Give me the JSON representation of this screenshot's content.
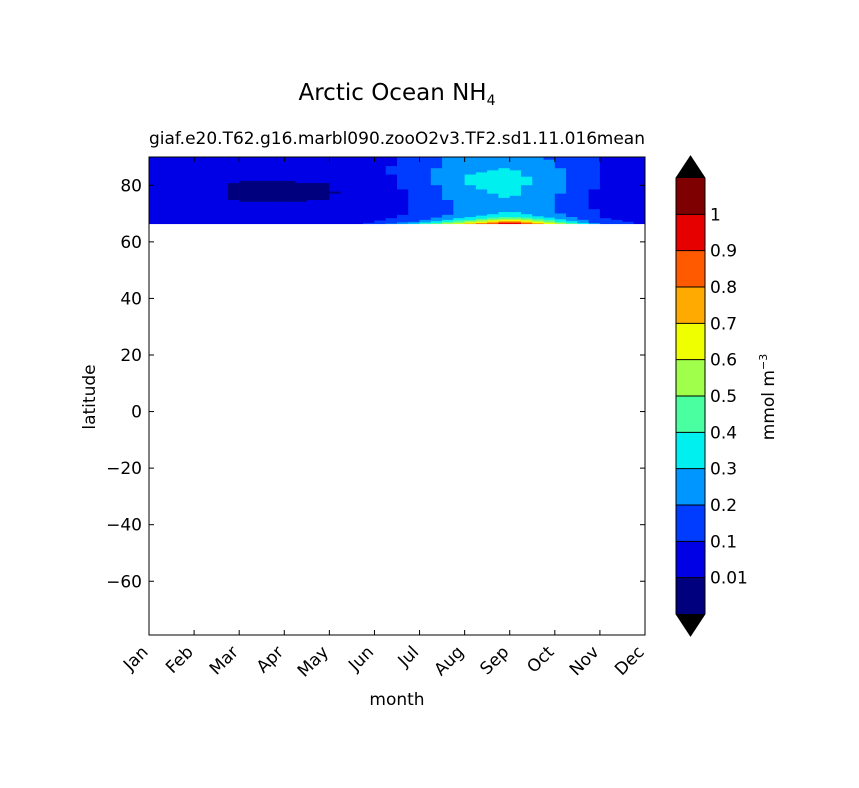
{
  "chart_data": {
    "type": "heatmap",
    "title": "Arctic Ocean NH",
    "title_subscript": "4",
    "subtitle_left": "giaf.e20.T62.g16.marbl090.zooO2v3.TF2.sd1.11.016",
    "subtitle_right": "mean",
    "xlabel": "month",
    "ylabel": "latitude",
    "x_categories": [
      "Jan",
      "Feb",
      "Mar",
      "Apr",
      "May",
      "Jun",
      "Jul",
      "Aug",
      "Sep",
      "Oct",
      "Nov",
      "Dec"
    ],
    "y_ticks": [
      80,
      60,
      40,
      20,
      0,
      -20,
      -40,
      -60
    ],
    "ylim": [
      -79,
      90
    ],
    "data_lat_range": [
      66.5,
      90
    ],
    "latitudes": [
      66.5,
      67.3,
      68.2,
      69,
      70,
      71,
      72.5,
      75,
      78,
      81,
      84,
      87,
      90
    ],
    "months": [
      "Jan",
      "Feb",
      "Mar",
      "Apr",
      "May",
      "Jun",
      "Jul",
      "Aug",
      "Sep",
      "Oct",
      "Nov",
      "Dec"
    ],
    "values_by_month": [
      [
        0.08,
        0.07,
        0.07,
        0.06,
        0.06,
        0.06,
        0.06,
        0.05,
        0.05,
        0.05,
        0.06,
        0.07,
        0.08
      ],
      [
        0.06,
        0.06,
        0.05,
        0.05,
        0.05,
        0.05,
        0.04,
        0.03,
        0.02,
        0.03,
        0.05,
        0.06,
        0.07
      ],
      [
        0.05,
        0.05,
        0.04,
        0.04,
        0.04,
        0.04,
        0.03,
        0.005,
        0.005,
        0.005,
        0.03,
        0.05,
        0.06
      ],
      [
        0.05,
        0.05,
        0.04,
        0.04,
        0.04,
        0.04,
        0.03,
        0.005,
        0.005,
        0.005,
        0.03,
        0.05,
        0.06
      ],
      [
        0.06,
        0.05,
        0.05,
        0.04,
        0.04,
        0.04,
        0.03,
        0.01,
        0.005,
        0.01,
        0.04,
        0.05,
        0.06
      ],
      [
        0.12,
        0.09,
        0.08,
        0.07,
        0.06,
        0.06,
        0.05,
        0.04,
        0.04,
        0.05,
        0.06,
        0.07,
        0.08
      ],
      [
        0.38,
        0.22,
        0.16,
        0.13,
        0.12,
        0.11,
        0.11,
        0.12,
        0.13,
        0.15,
        0.17,
        0.15,
        0.13
      ],
      [
        0.72,
        0.48,
        0.35,
        0.28,
        0.24,
        0.22,
        0.22,
        0.25,
        0.28,
        0.3,
        0.3,
        0.27,
        0.24
      ],
      [
        1.05,
        0.82,
        0.58,
        0.42,
        0.34,
        0.3,
        0.3,
        0.3,
        0.32,
        0.35,
        0.33,
        0.29,
        0.26
      ],
      [
        0.65,
        0.45,
        0.33,
        0.26,
        0.22,
        0.2,
        0.2,
        0.21,
        0.22,
        0.24,
        0.24,
        0.21,
        0.18
      ],
      [
        0.18,
        0.13,
        0.11,
        0.1,
        0.09,
        0.09,
        0.08,
        0.08,
        0.08,
        0.09,
        0.09,
        0.09,
        0.09
      ],
      [
        0.09,
        0.08,
        0.07,
        0.07,
        0.06,
        0.06,
        0.06,
        0.06,
        0.06,
        0.06,
        0.07,
        0.07,
        0.08
      ]
    ],
    "colorbar": {
      "label": "mmol m",
      "label_superscript": "−3",
      "levels": [
        0.01,
        0.1,
        0.2,
        0.3,
        0.4,
        0.5,
        0.6,
        0.7,
        0.8,
        0.9,
        1
      ],
      "tick_labels": [
        "0.01",
        "0.1",
        "0.2",
        "0.3",
        "0.4",
        "0.5",
        "0.6",
        "0.7",
        "0.8",
        "0.9",
        "1"
      ],
      "colors": [
        "#00007f",
        "#0000e6",
        "#003cff",
        "#0096ff",
        "#00f0f0",
        "#4aff9f",
        "#9fff4a",
        "#f0ff00",
        "#ffaa00",
        "#ff5a00",
        "#e60000",
        "#7f0000"
      ],
      "under_color": "#000000",
      "over_color": "#000000",
      "extend": "both"
    }
  }
}
